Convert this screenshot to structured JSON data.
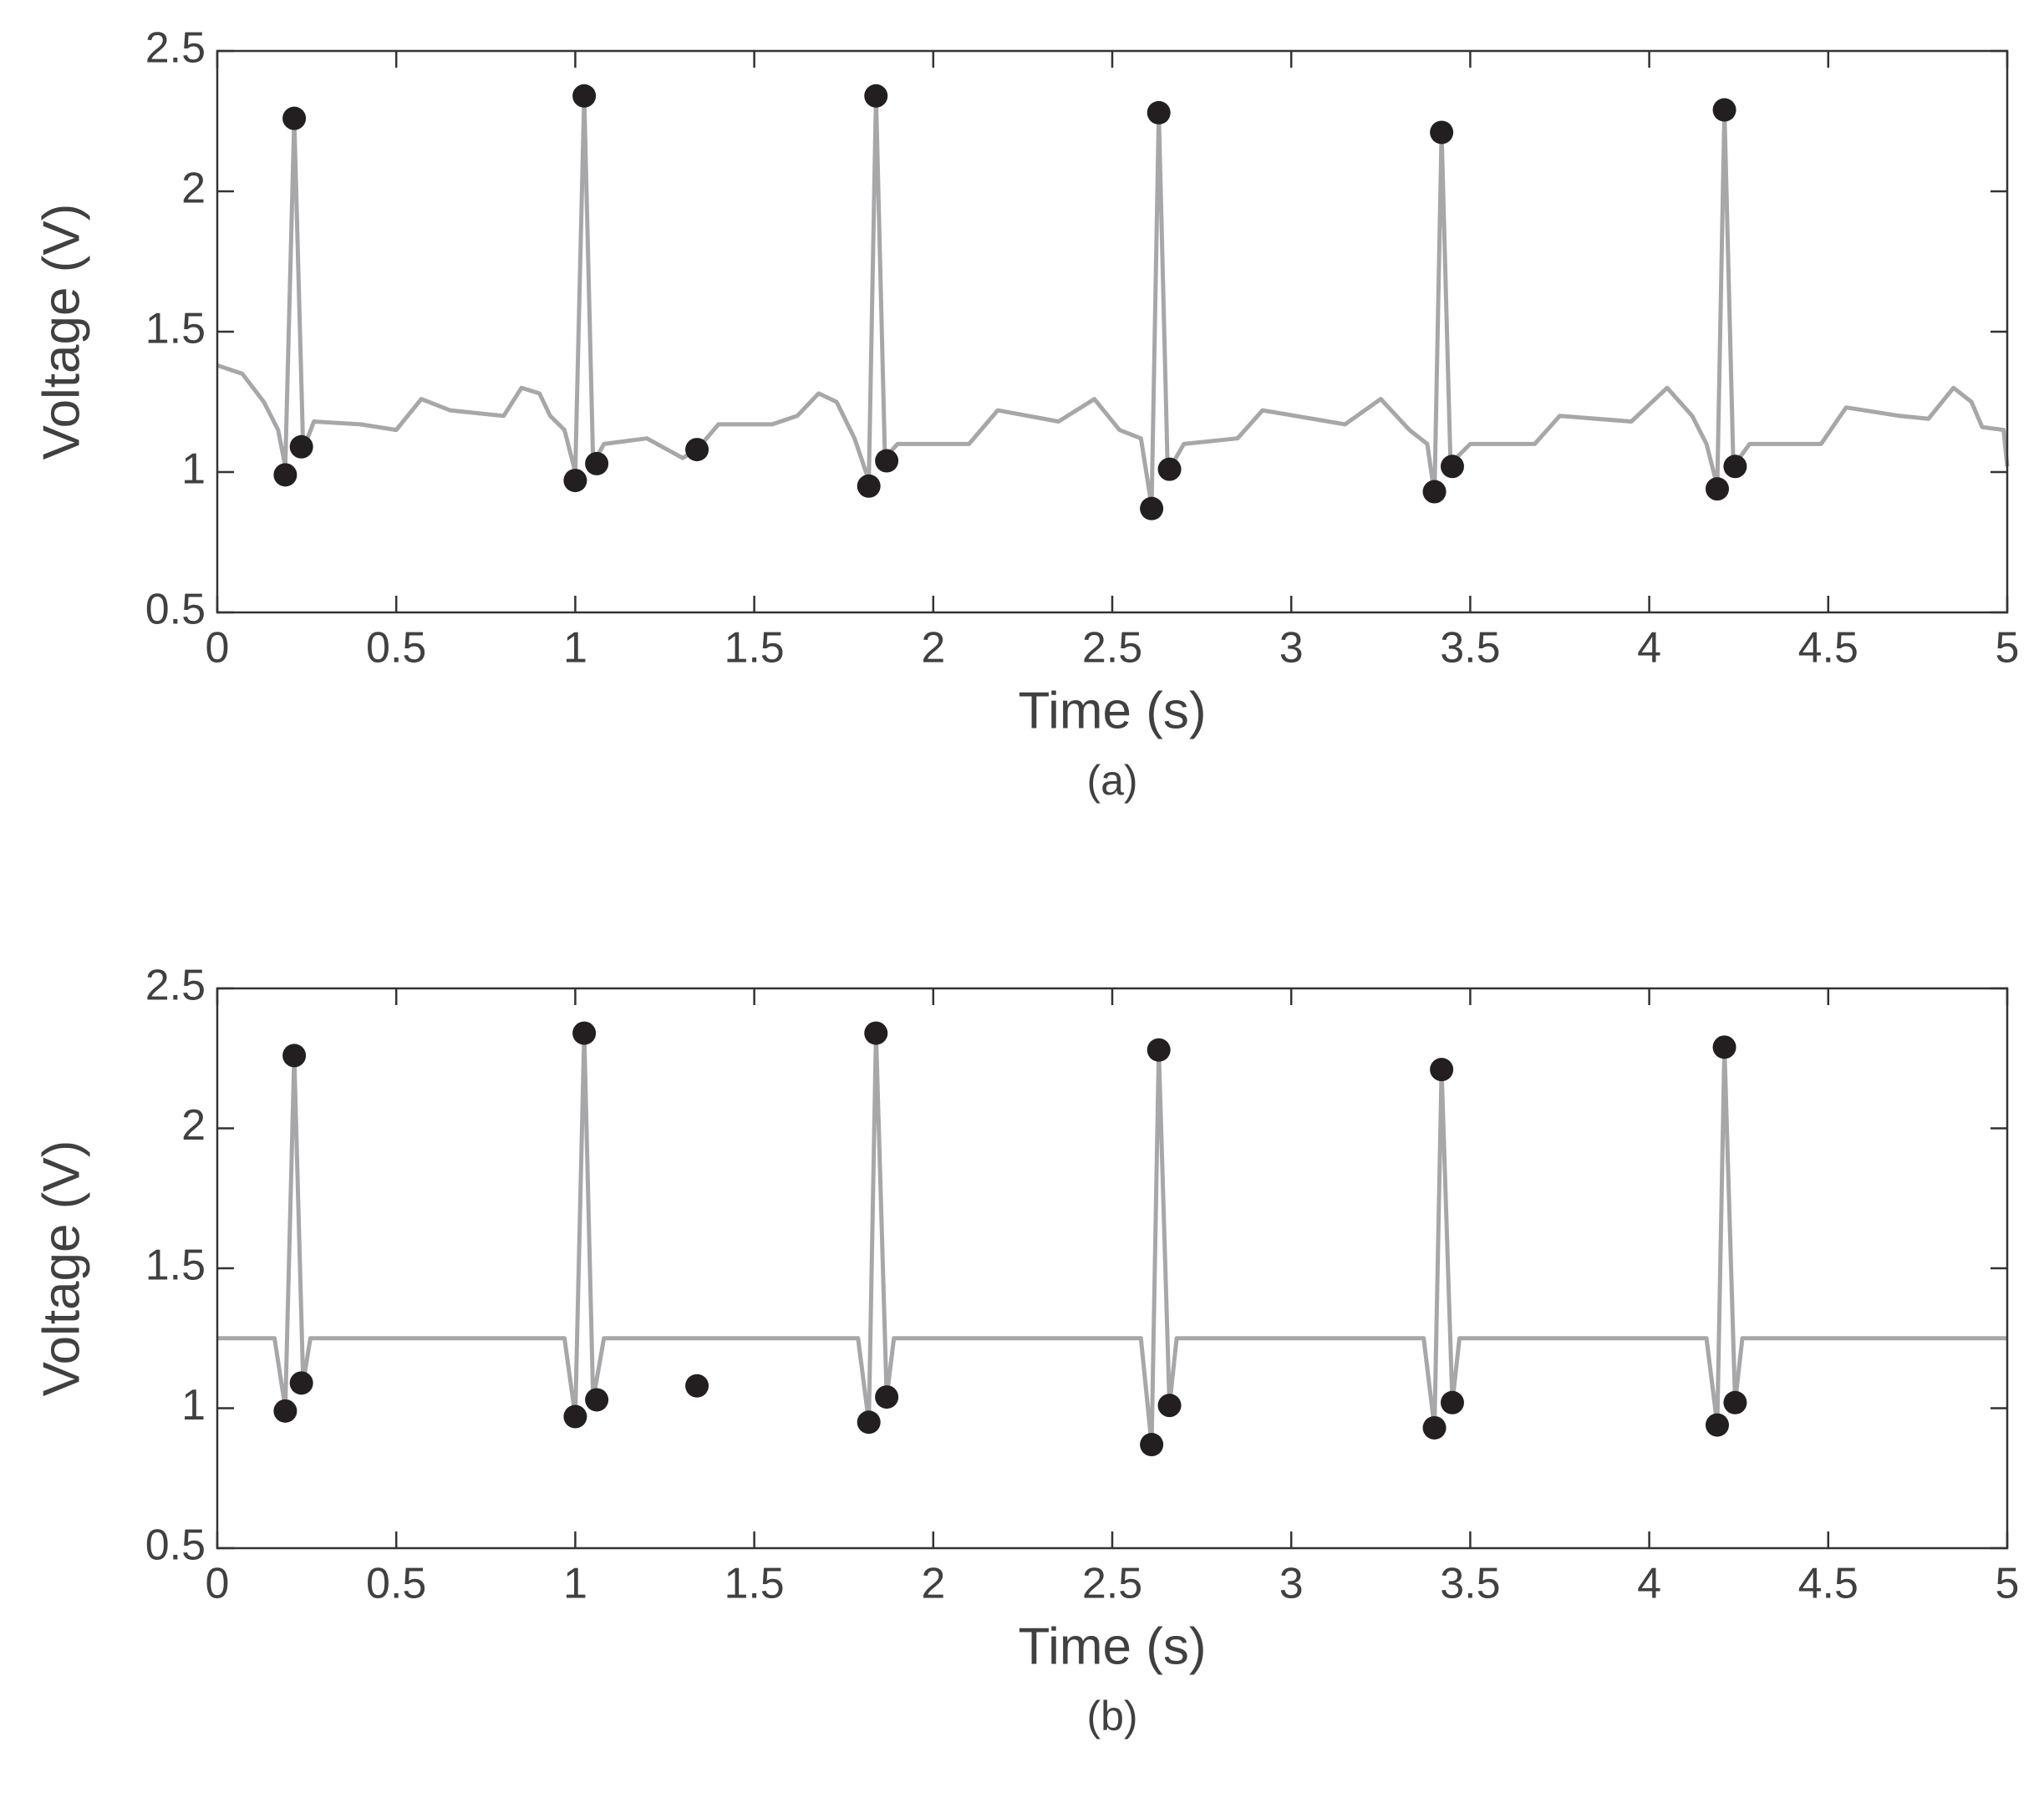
{
  "chart_data": [
    {
      "type": "line",
      "caption": "(a)",
      "xlabel": "Time (s)",
      "ylabel": "Voltage (V)",
      "xlim": [
        0,
        5
      ],
      "ylim": [
        0.5,
        2.5
      ],
      "xticks": [
        0,
        0.5,
        1,
        1.5,
        2,
        2.5,
        3,
        3.5,
        4,
        4.5,
        5
      ],
      "yticks": [
        0.5,
        1,
        1.5,
        2,
        2.5
      ],
      "series": [
        {
          "color": "#a7a7aa",
          "x": [
            0,
            0.07,
            0.13,
            0.17,
            0.19,
            0.215,
            0.24,
            0.27,
            0.4,
            0.5,
            0.57,
            0.65,
            0.8,
            0.85,
            0.9,
            0.93,
            0.97,
            1.0,
            1.025,
            1.05,
            1.08,
            1.2,
            1.3,
            1.34,
            1.4,
            1.55,
            1.62,
            1.68,
            1.73,
            1.78,
            1.82,
            1.84,
            1.865,
            1.9,
            2.1,
            2.18,
            2.35,
            2.45,
            2.52,
            2.58,
            2.61,
            2.63,
            2.655,
            2.7,
            2.85,
            2.92,
            3.15,
            3.25,
            3.33,
            3.38,
            3.4,
            3.42,
            3.445,
            3.5,
            3.68,
            3.75,
            3.95,
            4.05,
            4.12,
            4.16,
            4.19,
            4.21,
            4.235,
            4.28,
            4.48,
            4.55,
            4.7,
            4.78,
            4.85,
            4.9,
            4.93,
            4.99,
            5.0
          ],
          "values": [
            1.38,
            1.35,
            1.25,
            1.15,
            1.02,
            2.26,
            1.08,
            1.18,
            1.17,
            1.15,
            1.26,
            1.22,
            1.2,
            1.3,
            1.28,
            1.2,
            1.15,
            1.0,
            2.34,
            1.03,
            1.1,
            1.12,
            1.05,
            1.08,
            1.17,
            1.17,
            1.2,
            1.28,
            1.25,
            1.12,
            0.97,
            2.34,
            1.05,
            1.1,
            1.1,
            1.22,
            1.18,
            1.26,
            1.15,
            1.12,
            0.88,
            2.28,
            1.0,
            1.1,
            1.12,
            1.22,
            1.17,
            1.26,
            1.15,
            1.1,
            0.92,
            2.21,
            1.03,
            1.1,
            1.1,
            1.2,
            1.18,
            1.3,
            1.2,
            1.1,
            0.95,
            2.29,
            1.02,
            1.1,
            1.1,
            1.23,
            1.2,
            1.19,
            1.3,
            1.25,
            1.16,
            1.15,
            1.02
          ]
        },
        {
          "type": "scatter",
          "color": "#231f20",
          "x": [
            0.19,
            0.215,
            0.235,
            1.0,
            1.025,
            1.06,
            1.34,
            1.82,
            1.84,
            1.87,
            2.61,
            2.63,
            2.66,
            3.4,
            3.42,
            3.45,
            4.19,
            4.21,
            4.24
          ],
          "values": [
            0.99,
            2.26,
            1.09,
            0.97,
            2.34,
            1.03,
            1.08,
            0.95,
            2.34,
            1.04,
            0.87,
            2.28,
            1.01,
            0.93,
            2.21,
            1.02,
            0.94,
            2.29,
            1.02
          ]
        }
      ]
    },
    {
      "type": "line",
      "caption": "(b)",
      "xlabel": "Time (s)",
      "ylabel": "Voltage (V)",
      "xlim": [
        0,
        5
      ],
      "ylim": [
        0.5,
        2.5
      ],
      "xticks": [
        0,
        0.5,
        1,
        1.5,
        2,
        2.5,
        3,
        3.5,
        4,
        4.5,
        5
      ],
      "yticks": [
        0.5,
        1,
        1.5,
        2,
        2.5
      ],
      "series": [
        {
          "color": "#a7a7aa",
          "x": [
            0,
            0.16,
            0.19,
            0.215,
            0.24,
            0.26,
            0.97,
            1.0,
            1.025,
            1.05,
            1.08,
            1.79,
            1.82,
            1.84,
            1.87,
            1.89,
            2.58,
            2.61,
            2.63,
            2.66,
            2.68,
            3.37,
            3.4,
            3.42,
            3.45,
            3.47,
            4.16,
            4.19,
            4.21,
            4.24,
            4.26,
            5
          ],
          "values": [
            1.25,
            1.25,
            1.0,
            2.26,
            1.09,
            1.25,
            1.25,
            0.97,
            2.34,
            1.03,
            1.25,
            1.25,
            0.95,
            2.34,
            1.04,
            1.25,
            1.25,
            0.87,
            2.28,
            1.01,
            1.25,
            1.25,
            0.93,
            2.21,
            1.02,
            1.25,
            1.25,
            0.94,
            2.29,
            1.02,
            1.25,
            1.25
          ]
        },
        {
          "type": "scatter",
          "color": "#231f20",
          "x": [
            0.19,
            0.215,
            0.235,
            1.0,
            1.025,
            1.06,
            1.34,
            1.82,
            1.84,
            1.87,
            2.61,
            2.63,
            2.66,
            3.4,
            3.42,
            3.45,
            4.19,
            4.21,
            4.24
          ],
          "values": [
            0.99,
            2.26,
            1.09,
            0.97,
            2.34,
            1.03,
            1.08,
            0.95,
            2.34,
            1.04,
            0.87,
            2.28,
            1.01,
            0.93,
            2.21,
            1.02,
            0.94,
            2.29,
            1.02
          ]
        }
      ]
    }
  ]
}
